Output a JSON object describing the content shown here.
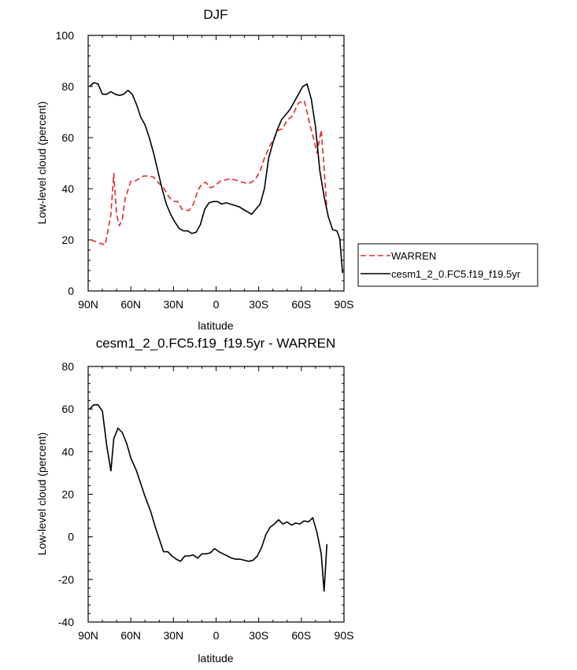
{
  "chart_data": [
    {
      "type": "line",
      "title": "DJF",
      "xlabel": "latitude",
      "ylabel": "Low-level cloud (percent)",
      "x_ticks": [
        "90N",
        "60N",
        "30N",
        "0",
        "30S",
        "60S",
        "90S"
      ],
      "x_tick_values": [
        90,
        60,
        30,
        0,
        -30,
        -60,
        -90
      ],
      "xlim": [
        90,
        -90
      ],
      "y_ticks": [
        "0",
        "20",
        "40",
        "60",
        "80",
        "100"
      ],
      "y_tick_values": [
        0,
        20,
        40,
        60,
        80,
        100
      ],
      "ylim": [
        0,
        100
      ],
      "grid": false,
      "legend_position": "right",
      "series": [
        {
          "name": "WARREN",
          "color": "#e8262b",
          "dash": "dashed",
          "x": [
            88,
            81,
            78,
            74,
            72,
            70,
            68,
            66,
            64,
            60,
            57,
            54,
            51,
            47,
            44,
            40,
            37,
            34,
            32,
            29,
            27,
            24,
            21,
            19,
            16,
            13,
            10,
            7,
            5,
            3,
            0,
            -3,
            -7,
            -10,
            -13,
            -16,
            -19,
            -22,
            -25,
            -28,
            -31,
            -34,
            -38,
            -41,
            -44,
            -47,
            -50,
            -53,
            -55,
            -57,
            -58,
            -60,
            -62,
            -64,
            -66,
            -68,
            -71,
            -73,
            -74,
            -76,
            -78
          ],
          "y": [
            20,
            18.5,
            18,
            30,
            46,
            30,
            25.5,
            28,
            36,
            43,
            43,
            44,
            45,
            45,
            44.5,
            42,
            40.5,
            37.5,
            36,
            35,
            35,
            32,
            31.5,
            31.5,
            34,
            39,
            42,
            42.5,
            40.5,
            40.5,
            41.5,
            43,
            43.5,
            44,
            43.5,
            43,
            42.5,
            42,
            42.5,
            44,
            47,
            52,
            57,
            60,
            63,
            63.5,
            67,
            68,
            70,
            72.5,
            73.5,
            74,
            74.5,
            70,
            65,
            61,
            54,
            60,
            63,
            48,
            32
          ]
        },
        {
          "name": "cesm1_2_0.FC5.f19_f19.5yr",
          "color": "#000000",
          "dash": "solid",
          "x": [
            89,
            86,
            83,
            80,
            77,
            74,
            71,
            68,
            65,
            62,
            59,
            56,
            53,
            50,
            47,
            44,
            41,
            38,
            35,
            32,
            29,
            26,
            23,
            20,
            17,
            14,
            11,
            8,
            5,
            2,
            -1,
            -4,
            -7,
            -10,
            -13,
            -16,
            -19,
            -22,
            -25,
            -28,
            -31,
            -34,
            -37,
            -40,
            -43,
            -46,
            -49,
            -52,
            -55,
            -58,
            -61,
            -64,
            -67,
            -70,
            -73,
            -76,
            -79,
            -82,
            -85,
            -87,
            -89
          ],
          "y": [
            80,
            81.5,
            81,
            77,
            77,
            78,
            77,
            76.5,
            77,
            78.5,
            77,
            73,
            68,
            65,
            60,
            54,
            47,
            40,
            34,
            30,
            27,
            24.5,
            23.5,
            23.5,
            22.5,
            23,
            26,
            32,
            34.5,
            35,
            35,
            34,
            34.5,
            34,
            33.5,
            33,
            32,
            31,
            30,
            32,
            34,
            40,
            52,
            58,
            63,
            67,
            69,
            71,
            74,
            77,
            80,
            81,
            75,
            64,
            47,
            37,
            29,
            24,
            23.5,
            20.5,
            7
          ]
        }
      ]
    },
    {
      "type": "line",
      "title": "cesm1_2_0.FC5.f19_f19.5yr - WARREN",
      "xlabel": "latitude",
      "ylabel": "Low-level cloud (percent)",
      "x_ticks": [
        "90N",
        "60N",
        "30N",
        "0",
        "30S",
        "60S",
        "90S"
      ],
      "x_tick_values": [
        90,
        60,
        30,
        0,
        -30,
        -60,
        -90
      ],
      "xlim": [
        90,
        -90
      ],
      "y_ticks": [
        "-40",
        "-20",
        "0",
        "20",
        "40",
        "60",
        "80"
      ],
      "y_tick_values": [
        -40,
        -20,
        0,
        20,
        40,
        60,
        80
      ],
      "ylim": [
        -40,
        80
      ],
      "grid": false,
      "series": [
        {
          "color": "#000000",
          "dash": "solid",
          "x": [
            89,
            86,
            83,
            80,
            77,
            74,
            72,
            69,
            66,
            63,
            60,
            56,
            53,
            50,
            46,
            43,
            40,
            37,
            34,
            31,
            28,
            25,
            22,
            19,
            16,
            13,
            10,
            7,
            4,
            1,
            -2,
            -5,
            -8,
            -11,
            -14,
            -17,
            -20,
            -23,
            -26,
            -29,
            -32,
            -35,
            -38,
            -41,
            -44,
            -47,
            -50,
            -53,
            -56,
            -59,
            -62,
            -65,
            -68,
            -71,
            -74,
            -76,
            -78
          ],
          "y": [
            60,
            62,
            62,
            59,
            43,
            31,
            46,
            51,
            49,
            44,
            37,
            31,
            25,
            19,
            12,
            5,
            -1,
            -7,
            -7,
            -9,
            -10.5,
            -11.5,
            -9,
            -9,
            -8.5,
            -10,
            -8,
            -8,
            -7.5,
            -5.5,
            -7,
            -8,
            -9,
            -10,
            -10.5,
            -10.5,
            -11,
            -11.5,
            -11,
            -9,
            -5,
            1,
            4.5,
            6,
            8,
            6,
            7,
            5.5,
            6.5,
            6,
            7.5,
            7,
            9,
            2,
            -8,
            -25.5,
            -3.5
          ]
        }
      ]
    }
  ]
}
